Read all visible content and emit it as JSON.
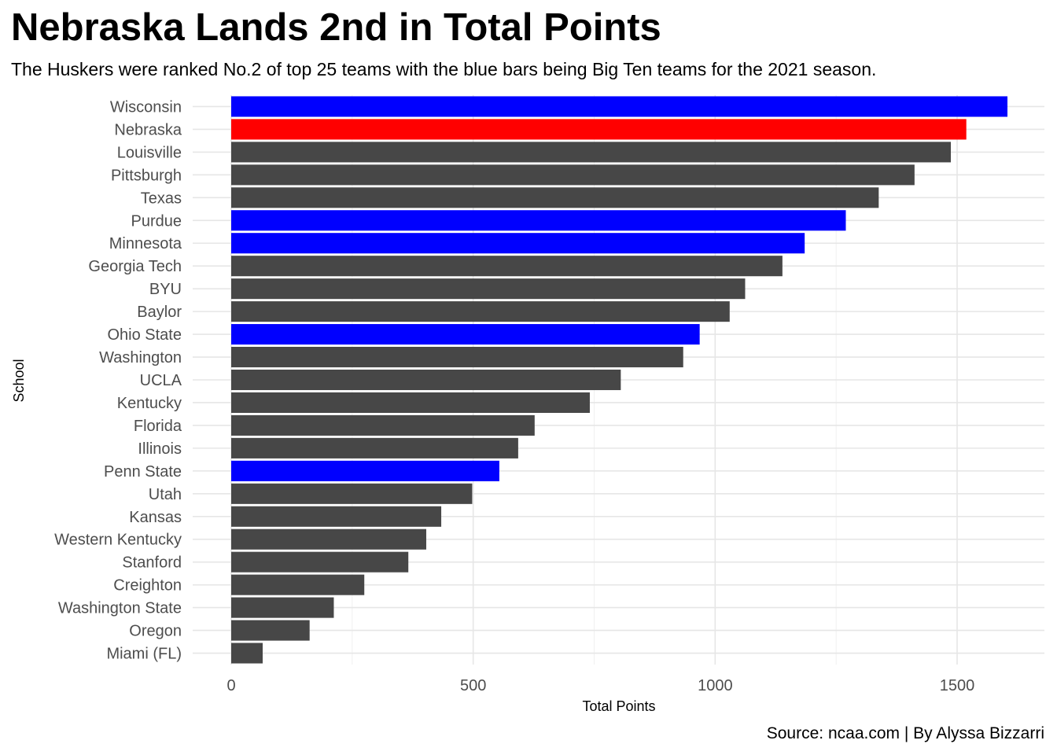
{
  "chart_data": {
    "type": "bar",
    "orientation": "horizontal",
    "title": "Nebraska Lands 2nd in Total Points",
    "subtitle": "The Huskers were ranked No.2 of top 25 teams with the blue bars being Big Ten teams for the 2021 season.",
    "caption": "Source: ncaa.com | By Alyssa Bizzarri",
    "xlabel": "Total Points",
    "ylabel": "School",
    "xlim": [
      0,
      1680
    ],
    "xticks": [
      0,
      500,
      1000,
      1500
    ],
    "grid": true,
    "legend": "none",
    "colors": {
      "big_ten": "#0000ff",
      "nebraska": "#ff0000",
      "other": "#474747"
    },
    "categories": [
      "Wisconsin",
      "Nebraska",
      "Louisville",
      "Pittsburgh",
      "Texas",
      "Purdue",
      "Minnesota",
      "Georgia Tech",
      "BYU",
      "Baylor",
      "Ohio State",
      "Washington",
      "UCLA",
      "Kentucky",
      "Florida",
      "Illinois",
      "Penn State",
      "Utah",
      "Kansas",
      "Western Kentucky",
      "Stanford",
      "Creighton",
      "Washington State",
      "Oregon",
      "Miami (FL)"
    ],
    "values": [
      1604,
      1519,
      1487,
      1412,
      1338,
      1270,
      1185,
      1139,
      1062,
      1030,
      968,
      934,
      805,
      741,
      627,
      593,
      554,
      498,
      434,
      403,
      366,
      275,
      212,
      162,
      65
    ],
    "groups": [
      "big_ten",
      "nebraska",
      "other",
      "other",
      "other",
      "big_ten",
      "big_ten",
      "other",
      "other",
      "other",
      "big_ten",
      "other",
      "other",
      "other",
      "other",
      "other",
      "big_ten",
      "other",
      "other",
      "other",
      "other",
      "other",
      "other",
      "other",
      "other"
    ]
  }
}
